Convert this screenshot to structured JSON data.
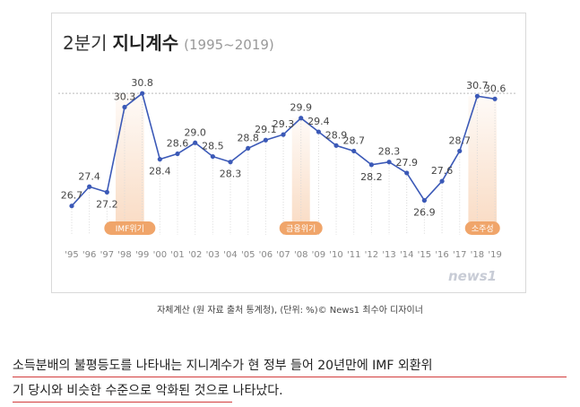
{
  "chart_data": {
    "type": "line",
    "title_light": "2분기",
    "title_bold": "지니계수",
    "subtitle": "(1995~2019)",
    "categories": [
      "'95",
      "'96",
      "'97",
      "'98",
      "'99",
      "'00",
      "'01",
      "'02",
      "'03",
      "'04",
      "'05",
      "'06",
      "'07",
      "'08",
      "'09",
      "'10",
      "'11",
      "'12",
      "'13",
      "'14",
      "'15",
      "'16",
      "'17",
      "'18",
      "'19"
    ],
    "values": [
      26.7,
      27.4,
      27.2,
      30.3,
      30.8,
      28.4,
      28.6,
      29.0,
      28.5,
      28.3,
      28.8,
      29.1,
      29.3,
      29.9,
      29.4,
      28.9,
      28.7,
      28.2,
      28.3,
      27.9,
      26.9,
      27.6,
      28.7,
      30.7,
      30.6
    ],
    "ylim": [
      26.2,
      31.1
    ],
    "line_color": "#3b59b7",
    "highlight_color": "#f0a56a",
    "highlights": [
      {
        "label": "IMF위기",
        "from": "'98",
        "to": "'99"
      },
      {
        "label": "금융위기",
        "from": "'08",
        "to": "'08"
      },
      {
        "label": "소주성",
        "from": "'18",
        "to": "'19"
      }
    ]
  },
  "logo_text": "news1",
  "caption": "자체계산 (원 자료 출처 통계청), (단위: %)© News1 최수아 디자이너",
  "article": {
    "line1": "소득분배의 불평등도를 나타내는 지니계수가 현 정부 들어 20년만에 IMF 외환위",
    "line2": "기 당시와 비슷한 수준으로 악화된 것으로 나타났다."
  }
}
